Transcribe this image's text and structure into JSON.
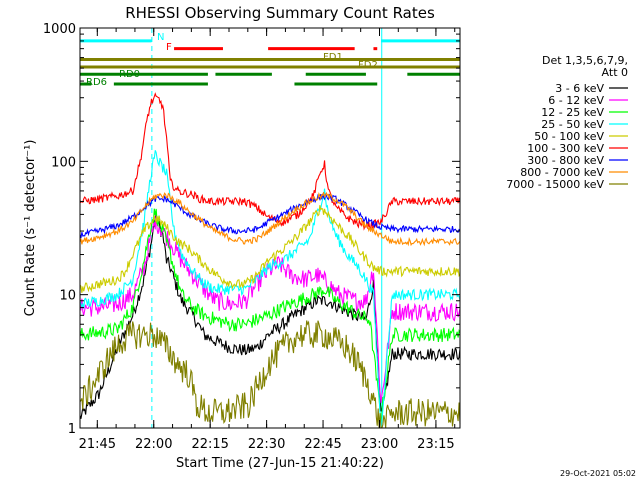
{
  "chart_data": {
    "type": "line",
    "title": "RHESSI Observing Summary Count Rates",
    "xlabel": "Start Time (27-Jun-15 21:40:22)",
    "ylabel": "Count Rate (s⁻¹ detector⁻¹)",
    "yscale": "log",
    "ylim": [
      1,
      1000
    ],
    "xlim_min": [
      0,
      101
    ],
    "x_ticks": [
      {
        "label": "21:45",
        "t": 4.6
      },
      {
        "label": "22:00",
        "t": 19.6
      },
      {
        "label": "22:15",
        "t": 34.6
      },
      {
        "label": "22:30",
        "t": 49.6
      },
      {
        "label": "22:45",
        "t": 64.6
      },
      {
        "label": "23:00",
        "t": 79.6
      },
      {
        "label": "23:15",
        "t": 94.6
      }
    ],
    "y_ticks": [
      {
        "label": "1",
        "v": 1
      },
      {
        "label": "10",
        "v": 10
      },
      {
        "label": "100",
        "v": 100
      },
      {
        "label": "1000",
        "v": 1000
      }
    ],
    "legend": {
      "header": [
        "Det 1,3,5,6,7,9,",
        "Att 0"
      ],
      "position": "right"
    },
    "series": [
      {
        "name": "3 - 6 keV",
        "color": "#000000",
        "points": [
          [
            0,
            1.2
          ],
          [
            5,
            1.8
          ],
          [
            10,
            4
          ],
          [
            14,
            7
          ],
          [
            17,
            13
          ],
          [
            19,
            25
          ],
          [
            20,
            38
          ],
          [
            22,
            28
          ],
          [
            23,
            18
          ],
          [
            24,
            16
          ],
          [
            25,
            13
          ],
          [
            27,
            9
          ],
          [
            30,
            7
          ],
          [
            33,
            5
          ],
          [
            36,
            4.5
          ],
          [
            40,
            4
          ],
          [
            44,
            3.8
          ],
          [
            47,
            4
          ],
          [
            50,
            5
          ],
          [
            54,
            6
          ],
          [
            57,
            7
          ],
          [
            60,
            8
          ],
          [
            63,
            9
          ],
          [
            66,
            9
          ],
          [
            69,
            8
          ],
          [
            73,
            7
          ],
          [
            76,
            6.5
          ],
          [
            78,
            12
          ],
          [
            80,
            1.2
          ],
          [
            83,
            3.6
          ],
          [
            88,
            3.6
          ],
          [
            94,
            3.6
          ],
          [
            101,
            3.6
          ]
        ]
      },
      {
        "name": "6 - 12 keV",
        "color": "#ff00ff",
        "points": [
          [
            0,
            8
          ],
          [
            5,
            8
          ],
          [
            10,
            8.5
          ],
          [
            14,
            10
          ],
          [
            17,
            16
          ],
          [
            19,
            28
          ],
          [
            20,
            36
          ],
          [
            22,
            30
          ],
          [
            24,
            25
          ],
          [
            27,
            18
          ],
          [
            30,
            14
          ],
          [
            33,
            11
          ],
          [
            36,
            9
          ],
          [
            40,
            8.5
          ],
          [
            44,
            9
          ],
          [
            47,
            12
          ],
          [
            50,
            15
          ],
          [
            53,
            17
          ],
          [
            56,
            14
          ],
          [
            60,
            13
          ],
          [
            63,
            14
          ],
          [
            66,
            12
          ],
          [
            69,
            10
          ],
          [
            73,
            9
          ],
          [
            76,
            9
          ],
          [
            78,
            16
          ],
          [
            80,
            1.5
          ],
          [
            83,
            7.5
          ],
          [
            88,
            7.5
          ],
          [
            94,
            7.5
          ],
          [
            101,
            7.5
          ]
        ]
      },
      {
        "name": "12 - 25 keV",
        "color": "#00ff00",
        "points": [
          [
            0,
            5
          ],
          [
            5,
            5.2
          ],
          [
            10,
            5.5
          ],
          [
            14,
            8
          ],
          [
            17,
            18
          ],
          [
            19,
            35
          ],
          [
            20,
            42
          ],
          [
            22,
            30
          ],
          [
            24,
            20
          ],
          [
            27,
            10
          ],
          [
            30,
            8
          ],
          [
            33,
            7
          ],
          [
            36,
            6.5
          ],
          [
            40,
            6
          ],
          [
            44,
            6
          ],
          [
            47,
            6.5
          ],
          [
            50,
            7
          ],
          [
            54,
            8
          ],
          [
            58,
            9
          ],
          [
            62,
            10
          ],
          [
            65,
            11
          ],
          [
            68,
            9
          ],
          [
            71,
            8
          ],
          [
            74,
            7
          ],
          [
            77,
            6.5
          ],
          [
            80,
            1.2
          ],
          [
            83,
            5
          ],
          [
            88,
            5
          ],
          [
            94,
            5
          ],
          [
            101,
            5
          ]
        ]
      },
      {
        "name": "25 - 50 keV",
        "color": "#00ffff",
        "points": [
          [
            0,
            8.5
          ],
          [
            5,
            9
          ],
          [
            10,
            10
          ],
          [
            14,
            13
          ],
          [
            17,
            35
          ],
          [
            19,
            85
          ],
          [
            20,
            112
          ],
          [
            21,
            100
          ],
          [
            23,
            80
          ],
          [
            25,
            30
          ],
          [
            27,
            20
          ],
          [
            30,
            15
          ],
          [
            33,
            12
          ],
          [
            36,
            11
          ],
          [
            40,
            11
          ],
          [
            44,
            11
          ],
          [
            47,
            13
          ],
          [
            50,
            16
          ],
          [
            54,
            18
          ],
          [
            58,
            22
          ],
          [
            61,
            26
          ],
          [
            63,
            40
          ],
          [
            65,
            60
          ],
          [
            66,
            40
          ],
          [
            68,
            28
          ],
          [
            71,
            20
          ],
          [
            74,
            16
          ],
          [
            76,
            13
          ],
          [
            78,
            10
          ],
          [
            80,
            1
          ],
          [
            83,
            10
          ],
          [
            88,
            10
          ],
          [
            94,
            10
          ],
          [
            101,
            10
          ]
        ]
      },
      {
        "name": "50 - 100 keV",
        "color": "#cccc00",
        "points": [
          [
            0,
            11
          ],
          [
            5,
            12
          ],
          [
            10,
            13
          ],
          [
            12,
            15
          ],
          [
            14,
            20
          ],
          [
            17,
            30
          ],
          [
            20,
            38
          ],
          [
            23,
            32
          ],
          [
            26,
            25
          ],
          [
            29,
            22
          ],
          [
            32,
            18
          ],
          [
            35,
            15
          ],
          [
            38,
            13
          ],
          [
            41,
            12
          ],
          [
            44,
            12
          ],
          [
            47,
            14
          ],
          [
            50,
            18
          ],
          [
            54,
            22
          ],
          [
            58,
            28
          ],
          [
            62,
            38
          ],
          [
            64,
            45
          ],
          [
            66,
            40
          ],
          [
            69,
            32
          ],
          [
            72,
            26
          ],
          [
            75,
            20
          ],
          [
            78,
            16
          ],
          [
            80,
            15
          ],
          [
            83,
            15
          ],
          [
            88,
            15
          ],
          [
            94,
            15
          ],
          [
            101,
            15
          ]
        ]
      },
      {
        "name": "100 - 300 keV",
        "color": "#ff0000",
        "points": [
          [
            0,
            50
          ],
          [
            5,
            52
          ],
          [
            10,
            55
          ],
          [
            14,
            60
          ],
          [
            16,
            100
          ],
          [
            18,
            220
          ],
          [
            19,
            280
          ],
          [
            20,
            300
          ],
          [
            21,
            290
          ],
          [
            22,
            260
          ],
          [
            23,
            150
          ],
          [
            24,
            70
          ],
          [
            26,
            60
          ],
          [
            28,
            58
          ],
          [
            30,
            56
          ],
          [
            32,
            52
          ],
          [
            35,
            50
          ],
          [
            40,
            50
          ],
          [
            44,
            50
          ],
          [
            47,
            45
          ],
          [
            50,
            38
          ],
          [
            54,
            35
          ],
          [
            58,
            40
          ],
          [
            62,
            55
          ],
          [
            64,
            85
          ],
          [
            65,
            95
          ],
          [
            66,
            60
          ],
          [
            68,
            45
          ],
          [
            71,
            38
          ],
          [
            74,
            34
          ],
          [
            77,
            33
          ],
          [
            80,
            35
          ],
          [
            83,
            50
          ],
          [
            88,
            50
          ],
          [
            94,
            50
          ],
          [
            101,
            50
          ]
        ]
      },
      {
        "name": "300 - 800 keV",
        "color": "#0000ff",
        "points": [
          [
            0,
            28
          ],
          [
            5,
            30
          ],
          [
            10,
            33
          ],
          [
            14,
            38
          ],
          [
            17,
            45
          ],
          [
            20,
            52
          ],
          [
            23,
            52
          ],
          [
            26,
            46
          ],
          [
            29,
            40
          ],
          [
            32,
            36
          ],
          [
            35,
            33
          ],
          [
            38,
            31
          ],
          [
            41,
            30
          ],
          [
            44,
            30
          ],
          [
            47,
            31
          ],
          [
            50,
            35
          ],
          [
            54,
            40
          ],
          [
            58,
            46
          ],
          [
            62,
            52
          ],
          [
            65,
            55
          ],
          [
            68,
            52
          ],
          [
            71,
            46
          ],
          [
            74,
            40
          ],
          [
            77,
            35
          ],
          [
            80,
            32
          ],
          [
            83,
            31
          ],
          [
            88,
            31
          ],
          [
            94,
            31
          ],
          [
            101,
            31
          ]
        ]
      },
      {
        "name": "800 - 7000 keV",
        "color": "#ff8c00",
        "points": [
          [
            0,
            25
          ],
          [
            5,
            27
          ],
          [
            10,
            30
          ],
          [
            14,
            35
          ],
          [
            17,
            45
          ],
          [
            20,
            55
          ],
          [
            23,
            56
          ],
          [
            26,
            50
          ],
          [
            29,
            42
          ],
          [
            32,
            36
          ],
          [
            35,
            31
          ],
          [
            38,
            28
          ],
          [
            41,
            26
          ],
          [
            44,
            25
          ],
          [
            47,
            26
          ],
          [
            50,
            30
          ],
          [
            54,
            37
          ],
          [
            58,
            45
          ],
          [
            62,
            52
          ],
          [
            65,
            56
          ],
          [
            68,
            52
          ],
          [
            71,
            45
          ],
          [
            74,
            37
          ],
          [
            77,
            31
          ],
          [
            80,
            28
          ],
          [
            83,
            25
          ],
          [
            88,
            25
          ],
          [
            94,
            25
          ],
          [
            101,
            25
          ]
        ]
      },
      {
        "name": "7000 - 15000 keV",
        "color": "#808000",
        "points": [
          [
            0,
            1.5
          ],
          [
            5,
            2.5
          ],
          [
            8,
            3.5
          ],
          [
            11,
            4.5
          ],
          [
            14,
            5
          ],
          [
            17,
            5
          ],
          [
            20,
            5
          ],
          [
            23,
            4
          ],
          [
            26,
            3
          ],
          [
            29,
            2.5
          ],
          [
            31,
            1.5
          ],
          [
            34,
            1.3
          ],
          [
            38,
            1.3
          ],
          [
            42,
            1.4
          ],
          [
            45,
            1.5
          ],
          [
            47,
            2
          ],
          [
            50,
            3
          ],
          [
            54,
            4
          ],
          [
            58,
            5
          ],
          [
            62,
            5
          ],
          [
            65,
            5
          ],
          [
            68,
            4.5
          ],
          [
            71,
            4
          ],
          [
            74,
            3
          ],
          [
            77,
            2
          ],
          [
            80,
            1
          ],
          [
            83,
            1.3
          ],
          [
            88,
            1.3
          ],
          [
            94,
            1.3
          ],
          [
            101,
            1.3
          ]
        ]
      }
    ],
    "state_bars": [
      {
        "label": "N",
        "color": "#00ffff",
        "v": 800,
        "segments": [
          [
            0,
            19
          ],
          [
            80,
            101
          ]
        ]
      },
      {
        "label": "F",
        "color": "#ff0000",
        "v": 700,
        "segments": [
          [
            25,
            38
          ],
          [
            50,
            73
          ],
          [
            78,
            79
          ]
        ]
      },
      {
        "label": "FD1",
        "color": "#808000",
        "v": 580,
        "segments": [
          [
            0,
            101
          ]
        ]
      },
      {
        "label": "FD2",
        "color": "#808000",
        "v": 510,
        "segments": [
          [
            0,
            101
          ]
        ]
      },
      {
        "label": "RD0",
        "color": "#008000",
        "v": 450,
        "segments": [
          [
            0,
            34
          ],
          [
            36,
            51
          ],
          [
            60,
            76
          ],
          [
            87,
            101
          ]
        ]
      },
      {
        "label": "RD6",
        "color": "#008000",
        "v": 380,
        "segments": [
          [
            0,
            3
          ],
          [
            9,
            34
          ],
          [
            57,
            79
          ]
        ]
      }
    ],
    "time_markers": [
      {
        "t": 19.1,
        "style": "dashed",
        "color": "#00ffff"
      },
      {
        "t": 80.2,
        "style": "solid",
        "color": "#00ffff"
      },
      {
        "t": 101.0,
        "style": "dashed",
        "color": "#00ffff"
      }
    ],
    "footer_date": "29-Oct-2021 05:02"
  }
}
